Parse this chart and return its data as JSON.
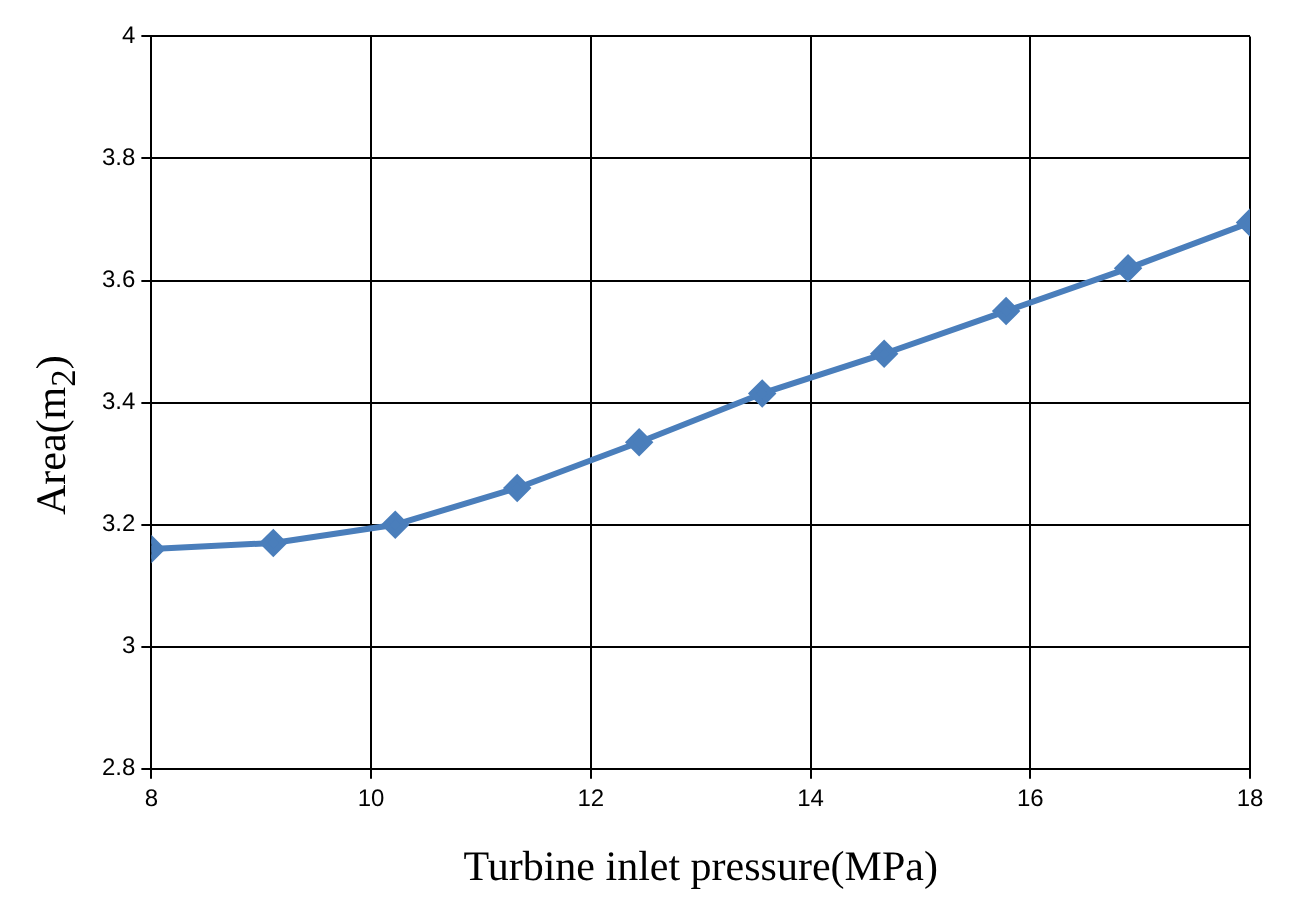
{
  "chart_data": {
    "type": "line",
    "xlabel": "Turbine inlet pressure(MPa)",
    "ylabel": "Area(m$_{2}$)",
    "x": [
      8,
      9.11,
      10.22,
      11.33,
      12.44,
      13.56,
      14.67,
      15.78,
      16.89,
      18
    ],
    "series": [
      {
        "color": "#4a7ebb",
        "values": [
          3.16,
          3.17,
          3.2,
          3.26,
          3.335,
          3.415,
          3.48,
          3.55,
          3.62,
          3.695
        ]
      }
    ],
    "xlim": [
      8,
      18
    ],
    "xticks": [
      8,
      10,
      12,
      14,
      16,
      18
    ],
    "ylim": [
      2.8,
      4
    ],
    "yticks": [
      2.8,
      3,
      3.2,
      3.4,
      3.6,
      3.8,
      4
    ],
    "grid": true,
    "legend": false,
    "marker": "diamond",
    "line_style": "solid"
  }
}
